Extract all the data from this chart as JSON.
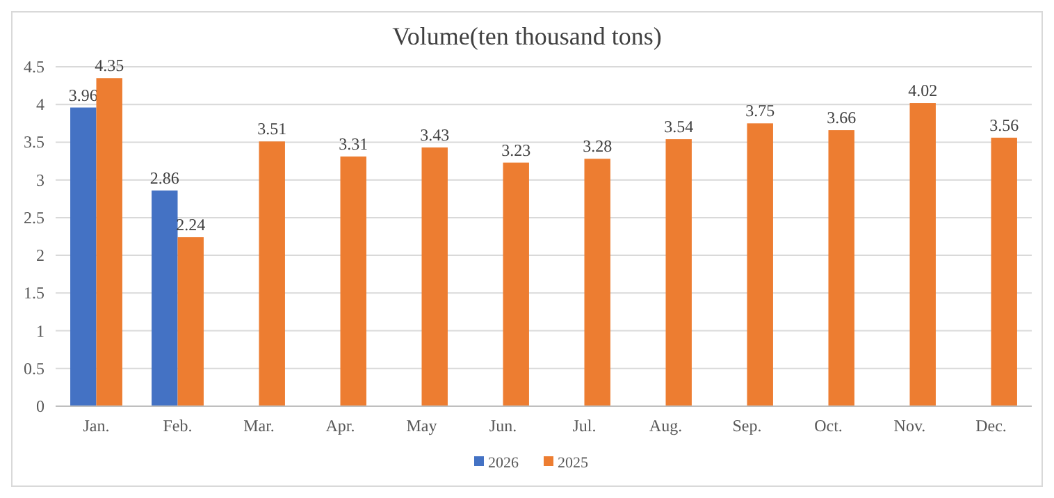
{
  "chart_data": {
    "type": "bar",
    "title": "Volume(ten thousand tons)",
    "categories": [
      "Jan.",
      "Feb.",
      "Mar.",
      "Apr.",
      "May",
      "Jun.",
      "Jul.",
      "Aug.",
      "Sep.",
      "Oct.",
      "Nov.",
      "Dec."
    ],
    "series": [
      {
        "name": "2026",
        "color": "#4472c4",
        "values": [
          3.96,
          2.86,
          null,
          null,
          null,
          null,
          null,
          null,
          null,
          null,
          null,
          null
        ]
      },
      {
        "name": "2025",
        "color": "#ed7d31",
        "values": [
          4.35,
          2.24,
          3.51,
          3.31,
          3.43,
          3.23,
          3.28,
          3.54,
          3.75,
          3.66,
          4.02,
          3.56
        ]
      }
    ],
    "ylim": [
      0,
      4.5
    ],
    "yticks": [
      0,
      0.5,
      1,
      1.5,
      2,
      2.5,
      3,
      3.5,
      4,
      4.5
    ],
    "grid": "y",
    "legend": "bottom",
    "data_labels": true
  }
}
